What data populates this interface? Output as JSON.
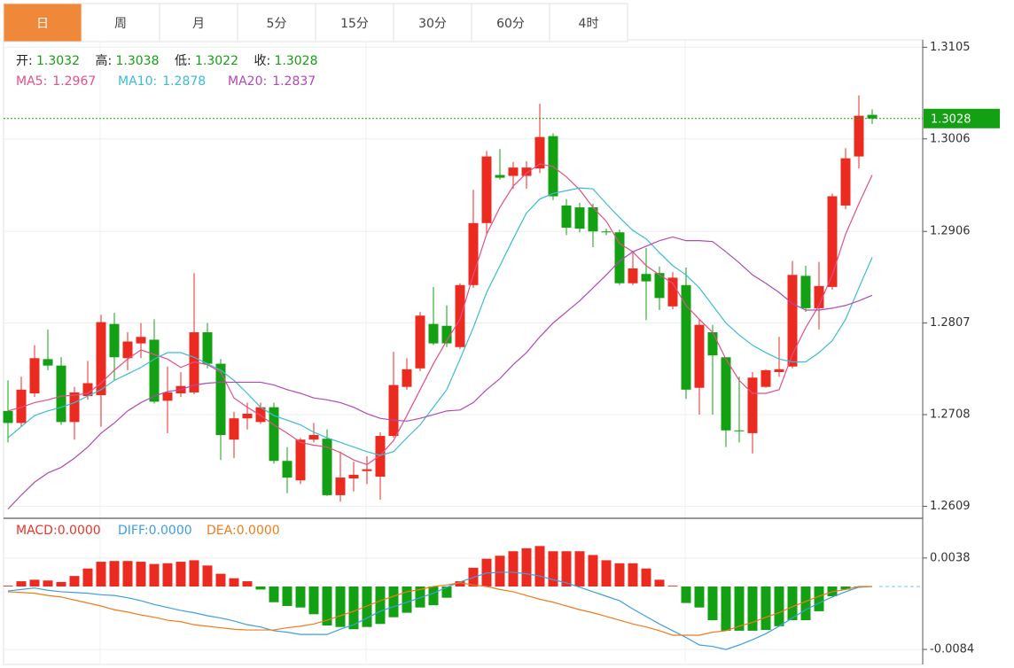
{
  "tabs": {
    "items": [
      "日",
      "周",
      "月",
      "5分",
      "15分",
      "30分",
      "60分",
      "4时"
    ],
    "active": 0,
    "active_color": "#f0883a"
  },
  "chart_data": [
    {
      "type": "candlestick",
      "ohlc_labels": [
        "开:",
        "高:",
        "低:",
        "收:"
      ],
      "up_color": "#eb2a20",
      "down_color": "#13a013",
      "open": [
        1.2712,
        1.2699,
        1.2731,
        1.2768,
        1.2761,
        1.27,
        1.2728,
        1.2729,
        1.2806,
        1.2769,
        1.2785,
        1.2789,
        1.2723,
        1.2731,
        1.2732,
        1.2797,
        1.2763,
        1.2681,
        1.2704,
        1.27,
        1.2716,
        1.2658,
        1.2637,
        1.2681,
        1.2682,
        1.2621,
        1.2639,
        1.2647,
        1.2641,
        1.2685,
        1.2738,
        1.2758,
        1.2806,
        1.2804,
        1.2781,
        1.2848,
        1.2915,
        1.2967,
        1.2966,
        1.2966,
        1.2974,
        1.3009,
        1.2934,
        1.2932,
        1.2932,
        1.2906,
        1.2905,
        1.285,
        1.286,
        1.2861,
        1.2825,
        1.2848,
        1.2737,
        1.2797,
        1.277,
        1.2691,
        1.2688,
        1.2738,
        1.2754,
        1.276,
        1.2858,
        1.2823,
        1.2846,
        1.2934,
        1.2987,
        1.3032
      ],
      "high": [
        1.2745,
        1.2749,
        1.2783,
        1.28,
        1.277,
        1.2738,
        1.2766,
        1.2816,
        1.2818,
        1.2797,
        1.2807,
        1.2811,
        1.276,
        1.2754,
        1.2861,
        1.2807,
        1.2768,
        1.2711,
        1.2721,
        1.2721,
        1.2721,
        1.2673,
        1.2683,
        1.2699,
        1.2692,
        1.2668,
        1.2657,
        1.2663,
        1.2689,
        1.2776,
        1.2769,
        1.2819,
        1.2846,
        1.2826,
        1.285,
        1.2951,
        1.2993,
        1.2995,
        1.2981,
        1.2982,
        1.3044,
        1.3012,
        1.2941,
        1.2937,
        1.2936,
        1.2909,
        1.2908,
        1.2883,
        1.2888,
        1.2868,
        1.2862,
        1.2867,
        1.2811,
        1.2805,
        1.277,
        1.2749,
        1.2754,
        1.2757,
        1.2792,
        1.2874,
        1.2869,
        1.2873,
        1.2947,
        1.2996,
        1.3053,
        1.3038
      ],
      "low": [
        1.2678,
        1.2695,
        1.2727,
        1.2756,
        1.2697,
        1.2681,
        1.2724,
        1.2695,
        1.2745,
        1.2756,
        1.2769,
        1.272,
        1.2688,
        1.2727,
        1.273,
        1.2758,
        1.2659,
        1.2661,
        1.2692,
        1.2698,
        1.2655,
        1.2623,
        1.2633,
        1.2678,
        1.262,
        1.2614,
        1.2625,
        1.2633,
        1.2616,
        1.2683,
        1.2735,
        1.2755,
        1.2783,
        1.2781,
        1.2779,
        1.2845,
        1.2902,
        1.2962,
        1.2952,
        1.2952,
        1.2969,
        1.294,
        1.2902,
        1.2905,
        1.2889,
        1.2902,
        1.2848,
        1.2848,
        1.281,
        1.2821,
        1.2822,
        1.2725,
        1.2708,
        1.2708,
        1.2673,
        1.2678,
        1.2666,
        1.2737,
        1.2749,
        1.2758,
        1.2819,
        1.28,
        1.2843,
        1.293,
        1.2974,
        1.3022
      ],
      "close": [
        1.2699,
        1.2735,
        1.2769,
        1.2761,
        1.27,
        1.2732,
        1.2742,
        1.2808,
        1.277,
        1.2787,
        1.2792,
        1.2722,
        1.2732,
        1.2739,
        1.2797,
        1.2763,
        1.2686,
        1.2704,
        1.2709,
        1.2716,
        1.2658,
        1.264,
        1.2681,
        1.2686,
        1.2621,
        1.264,
        1.2643,
        1.2649,
        1.2685,
        1.274,
        1.2757,
        1.2815,
        1.2785,
        1.2785,
        1.2848,
        1.2915,
        1.2987,
        1.2964,
        1.2975,
        1.2975,
        1.3008,
        1.2944,
        1.291,
        1.2909,
        1.2906,
        1.2905,
        1.285,
        1.2866,
        1.2852,
        1.2834,
        1.2856,
        1.2735,
        1.2805,
        1.2772,
        1.2691,
        1.269,
        1.2748,
        1.2756,
        1.2757,
        1.2859,
        1.2823,
        1.2847,
        1.2944,
        1.2985,
        1.3031,
        1.3028
      ],
      "series": [
        {
          "name": "MA5:",
          "color": "#e2508a",
          "values": [
            1.2712,
            1.2716,
            1.2721,
            1.2724,
            1.2728,
            1.2729,
            1.2731,
            1.2742,
            1.2756,
            1.2768,
            1.2778,
            1.2773,
            1.2768,
            1.2759,
            1.2765,
            1.2762,
            1.2754,
            1.2726,
            1.2716,
            1.2707,
            1.2697,
            1.2688,
            1.2678,
            1.2675,
            1.2673,
            1.2667,
            1.2659,
            1.2654,
            1.2664,
            1.268,
            1.2707,
            1.2735,
            1.2763,
            1.2788,
            1.2811,
            1.2859,
            1.2903,
            1.2932,
            1.2955,
            1.2969,
            1.2979,
            1.2976,
            1.2965,
            1.2951,
            1.2932,
            1.2917,
            1.2893,
            1.2884,
            1.2869,
            1.2859,
            1.285,
            1.2826,
            1.2811,
            1.2797,
            1.2768,
            1.2745,
            1.2731,
            1.2731,
            1.2735,
            1.2773,
            1.2802,
            1.2826,
            1.2859,
            1.2903,
            1.2936,
            1.2967
          ]
        },
        {
          "name": "MA10:",
          "color": "#3bbcd6",
          "values": [
            1.2683,
            1.2695,
            1.2707,
            1.2712,
            1.2716,
            1.2721,
            1.2728,
            1.2735,
            1.2745,
            1.2752,
            1.2759,
            1.2768,
            1.2775,
            1.2775,
            1.277,
            1.2763,
            1.2756,
            1.2745,
            1.2731,
            1.2716,
            1.2707,
            1.2702,
            1.2697,
            1.2689,
            1.2683,
            1.2678,
            1.2673,
            1.2668,
            1.2664,
            1.2668,
            1.2683,
            1.2697,
            1.2716,
            1.2735,
            1.2768,
            1.2802,
            1.284,
            1.2869,
            1.2898,
            1.2926,
            1.2941,
            1.2947,
            1.295,
            1.2953,
            1.2952,
            1.2936,
            1.2921,
            1.2907,
            1.2898,
            1.2883,
            1.2869,
            1.2859,
            1.2845,
            1.2826,
            1.2807,
            1.2794,
            1.2783,
            1.2775,
            1.2768,
            1.2765,
            1.2765,
            1.2775,
            1.2788,
            1.2811,
            1.2845,
            1.2878
          ]
        },
        {
          "name": "MA20:",
          "color": "#b04ab4",
          "values": [
            1.2606,
            1.2621,
            1.2635,
            1.2645,
            1.2651,
            1.2661,
            1.2673,
            1.2688,
            1.2699,
            1.2712,
            1.2721,
            1.2728,
            1.2733,
            1.2735,
            1.274,
            1.2742,
            1.2743,
            1.2743,
            1.2743,
            1.2743,
            1.274,
            1.2735,
            1.2731,
            1.2726,
            1.2724,
            1.2721,
            1.2716,
            1.2709,
            1.2704,
            1.2702,
            1.2701,
            1.2704,
            1.2708,
            1.2712,
            1.2713,
            1.2721,
            1.2735,
            1.2747,
            1.2762,
            1.2775,
            1.2792,
            1.2807,
            1.2819,
            1.2831,
            1.2845,
            1.2859,
            1.2874,
            1.2884,
            1.289,
            1.2896,
            1.29,
            1.2896,
            1.2896,
            1.2895,
            1.2884,
            1.2872,
            1.2859,
            1.285,
            1.284,
            1.2828,
            1.2821,
            1.2821,
            1.2823,
            1.2826,
            1.2831,
            1.2837
          ]
        }
      ],
      "ylim": [
        1.2596,
        1.3113
      ],
      "yticks": [
        1.3105,
        1.3006,
        1.2906,
        1.2807,
        1.2708,
        1.2609
      ],
      "grid": true
    },
    {
      "type": "macd",
      "up_color": "#eb2a20",
      "down_color": "#13a013",
      "series": [
        {
          "name": "MACD:",
          "style": "bar",
          "color": "#e8352a",
          "label": "0.0000",
          "values": [
            0.0001,
            0.0007,
            0.0009,
            0.0008,
            0.0006,
            0.0014,
            0.0024,
            0.0033,
            0.0034,
            0.0034,
            0.0033,
            0.003,
            0.0031,
            0.0033,
            0.0035,
            0.0028,
            0.0017,
            0.0011,
            0.0007,
            -0.0004,
            -0.0021,
            -0.0026,
            -0.0028,
            -0.0037,
            -0.0052,
            -0.0054,
            -0.0057,
            -0.0054,
            -0.005,
            -0.0041,
            -0.0035,
            -0.0028,
            -0.0025,
            -0.0015,
            0.0007,
            0.0025,
            0.0037,
            0.0041,
            0.0047,
            0.0051,
            0.0054,
            0.0047,
            0.0047,
            0.0047,
            0.0042,
            0.0035,
            0.0031,
            0.0031,
            0.0024,
            0.0009,
            0.0001,
            -0.0022,
            -0.0028,
            -0.0045,
            -0.0059,
            -0.0059,
            -0.0059,
            -0.0058,
            -0.0053,
            -0.0045,
            -0.0045,
            -0.0033,
            -0.0013,
            -0.0004,
            -0.0001,
            0
          ]
        },
        {
          "name": "DIFF:",
          "style": "line",
          "color": "#3d9fe0",
          "label": "0.0000",
          "values": [
            -0.0006,
            -0.0004,
            -0.0002,
            -0.0005,
            -0.0007,
            -0.0008,
            -0.0009,
            -0.0011,
            -0.0012,
            -0.0015,
            -0.0019,
            -0.0024,
            -0.0028,
            -0.0032,
            -0.0035,
            -0.0039,
            -0.0042,
            -0.0046,
            -0.0051,
            -0.0054,
            -0.0059,
            -0.0061,
            -0.0064,
            -0.0064,
            -0.0064,
            -0.0057,
            -0.0051,
            -0.0042,
            -0.0033,
            -0.0027,
            -0.0021,
            -0.0015,
            -0.0009,
            -0.0001,
            0.0006,
            0.0012,
            0.0018,
            0.0019,
            0.0019,
            0.0017,
            0.0014,
            0.0009,
            0.0005,
            -0.0001,
            -0.0007,
            -0.0013,
            -0.0019,
            -0.003,
            -0.004,
            -0.005,
            -0.0059,
            -0.0068,
            -0.0078,
            -0.008,
            -0.0084,
            -0.0078,
            -0.0071,
            -0.0063,
            -0.0053,
            -0.0042,
            -0.0031,
            -0.0022,
            -0.0014,
            -0.0007,
            -0.0001,
            0
          ]
        },
        {
          "name": "DEA:",
          "style": "line",
          "color": "#f07b1c",
          "label": "0.0000",
          "values": [
            -0.0007,
            -0.0008,
            -0.0009,
            -0.0012,
            -0.0014,
            -0.0018,
            -0.0022,
            -0.0026,
            -0.0031,
            -0.0034,
            -0.0038,
            -0.0041,
            -0.0045,
            -0.0047,
            -0.0051,
            -0.0053,
            -0.0055,
            -0.0057,
            -0.0058,
            -0.0058,
            -0.0058,
            -0.0055,
            -0.0053,
            -0.005,
            -0.0045,
            -0.0039,
            -0.0033,
            -0.0026,
            -0.0019,
            -0.0013,
            -0.0007,
            -0.0004,
            0,
            0.0002,
            0.0005,
            0.0002,
            0,
            -0.0004,
            -0.0007,
            -0.0012,
            -0.0017,
            -0.0021,
            -0.0026,
            -0.0031,
            -0.0035,
            -0.004,
            -0.0045,
            -0.005,
            -0.0054,
            -0.0059,
            -0.0065,
            -0.0065,
            -0.0065,
            -0.0061,
            -0.0059,
            -0.0053,
            -0.0048,
            -0.0041,
            -0.0035,
            -0.0027,
            -0.002,
            -0.0013,
            -0.0007,
            -0.0004,
            0,
            0
          ]
        }
      ],
      "ylim": [
        -0.0104,
        0.0091
      ],
      "yticks": [
        0.0038,
        -0.0084
      ],
      "grid": true
    }
  ]
}
